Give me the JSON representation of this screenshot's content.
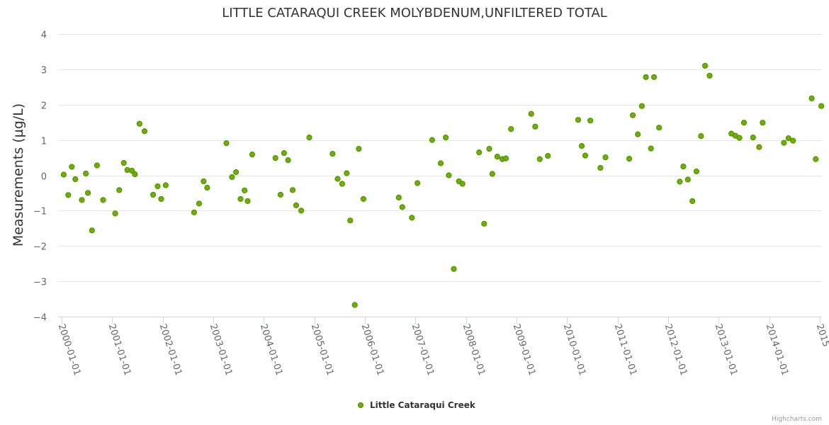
{
  "chart_data": {
    "type": "scatter",
    "title": "LITTLE CATARAQUI CREEK MOLYBDENUM,UNFILTERED TOTAL",
    "xlabel": "",
    "ylabel": "Measurements (µg/L)",
    "ylim": [
      -4,
      4
    ],
    "yticks": [
      -4,
      -3,
      -2,
      -1,
      0,
      1,
      2,
      3,
      4
    ],
    "ytick_labels": [
      "−4",
      "−3",
      "−2",
      "−1",
      "0",
      "1",
      "2",
      "3",
      "4"
    ],
    "xlim": [
      2000.0,
      2015.0
    ],
    "xticks": [
      2000,
      2001,
      2002,
      2003,
      2004,
      2005,
      2006,
      2007,
      2008,
      2009,
      2010,
      2011,
      2012,
      2013,
      2014,
      2015
    ],
    "xtick_labels": [
      "2000-01-01",
      "2001-01-01",
      "2002-01-01",
      "2003-01-01",
      "2004-01-01",
      "2005-01-01",
      "2006-01-01",
      "2007-01-01",
      "2008-01-01",
      "2009-01-01",
      "2010-01-01",
      "2011-01-01",
      "2012-01-01",
      "2013-01-01",
      "2014-01-01",
      "2015"
    ],
    "grid": true,
    "legend_position": "bottom-center",
    "series": [
      {
        "name": "Little Cataraqui Creek",
        "color": "#6ab100",
        "points": [
          [
            2000.04,
            0.02
          ],
          [
            2000.13,
            -0.56
          ],
          [
            2000.2,
            0.24
          ],
          [
            2000.27,
            -0.11
          ],
          [
            2000.4,
            -0.7
          ],
          [
            2000.48,
            0.05
          ],
          [
            2000.52,
            -0.5
          ],
          [
            2000.6,
            -1.56
          ],
          [
            2000.7,
            0.28
          ],
          [
            2000.82,
            -0.7
          ],
          [
            2001.06,
            -1.08
          ],
          [
            2001.14,
            -0.42
          ],
          [
            2001.23,
            0.35
          ],
          [
            2001.3,
            0.15
          ],
          [
            2001.39,
            0.13
          ],
          [
            2001.45,
            0.03
          ],
          [
            2001.54,
            1.46
          ],
          [
            2001.64,
            1.25
          ],
          [
            2001.81,
            -0.55
          ],
          [
            2001.9,
            -0.31
          ],
          [
            2001.97,
            -0.67
          ],
          [
            2002.06,
            -0.28
          ],
          [
            2002.62,
            -1.05
          ],
          [
            2002.72,
            -0.8
          ],
          [
            2002.81,
            -0.17
          ],
          [
            2002.88,
            -0.35
          ],
          [
            2003.26,
            0.91
          ],
          [
            2003.37,
            -0.05
          ],
          [
            2003.45,
            0.09
          ],
          [
            2003.54,
            -0.67
          ],
          [
            2003.62,
            -0.43
          ],
          [
            2003.68,
            -0.73
          ],
          [
            2003.77,
            0.59
          ],
          [
            2004.23,
            0.49
          ],
          [
            2004.33,
            -0.55
          ],
          [
            2004.4,
            0.63
          ],
          [
            2004.48,
            0.43
          ],
          [
            2004.57,
            -0.42
          ],
          [
            2004.64,
            -0.85
          ],
          [
            2004.74,
            -1.0
          ],
          [
            2004.9,
            1.07
          ],
          [
            2005.36,
            0.61
          ],
          [
            2005.46,
            -0.1
          ],
          [
            2005.55,
            -0.24
          ],
          [
            2005.64,
            0.06
          ],
          [
            2005.71,
            -1.28
          ],
          [
            2005.8,
            -3.67
          ],
          [
            2005.88,
            0.75
          ],
          [
            2005.97,
            -0.67
          ],
          [
            2006.67,
            -0.63
          ],
          [
            2006.74,
            -0.9
          ],
          [
            2006.93,
            -1.2
          ],
          [
            2007.04,
            -0.22
          ],
          [
            2007.33,
            1.0
          ],
          [
            2007.5,
            0.34
          ],
          [
            2007.6,
            1.07
          ],
          [
            2007.66,
            0.0
          ],
          [
            2007.76,
            -2.65
          ],
          [
            2007.86,
            -0.17
          ],
          [
            2007.93,
            -0.24
          ],
          [
            2008.26,
            0.65
          ],
          [
            2008.36,
            -1.37
          ],
          [
            2008.46,
            0.75
          ],
          [
            2008.52,
            0.04
          ],
          [
            2008.62,
            0.53
          ],
          [
            2008.72,
            0.46
          ],
          [
            2008.79,
            0.48
          ],
          [
            2008.89,
            1.31
          ],
          [
            2009.29,
            1.74
          ],
          [
            2009.37,
            1.38
          ],
          [
            2009.46,
            0.46
          ],
          [
            2009.62,
            0.55
          ],
          [
            2010.22,
            1.57
          ],
          [
            2010.29,
            0.83
          ],
          [
            2010.36,
            0.56
          ],
          [
            2010.46,
            1.55
          ],
          [
            2010.66,
            0.21
          ],
          [
            2010.76,
            0.51
          ],
          [
            2011.23,
            0.47
          ],
          [
            2011.3,
            1.7
          ],
          [
            2011.4,
            1.16
          ],
          [
            2011.48,
            1.96
          ],
          [
            2011.56,
            2.78
          ],
          [
            2011.66,
            0.76
          ],
          [
            2011.72,
            2.78
          ],
          [
            2011.82,
            1.35
          ],
          [
            2012.23,
            -0.18
          ],
          [
            2012.3,
            0.25
          ],
          [
            2012.39,
            -0.12
          ],
          [
            2012.48,
            -0.73
          ],
          [
            2012.56,
            0.11
          ],
          [
            2012.65,
            1.11
          ],
          [
            2012.73,
            3.1
          ],
          [
            2012.82,
            2.82
          ],
          [
            2013.25,
            1.18
          ],
          [
            2013.33,
            1.12
          ],
          [
            2013.41,
            1.06
          ],
          [
            2013.5,
            1.49
          ],
          [
            2013.68,
            1.07
          ],
          [
            2013.8,
            0.8
          ],
          [
            2013.87,
            1.49
          ],
          [
            2014.29,
            0.92
          ],
          [
            2014.38,
            1.05
          ],
          [
            2014.47,
            0.98
          ],
          [
            2014.84,
            2.18
          ],
          [
            2014.92,
            0.46
          ],
          [
            2015.03,
            1.96
          ]
        ]
      }
    ]
  },
  "credits": "Highcharts.com"
}
